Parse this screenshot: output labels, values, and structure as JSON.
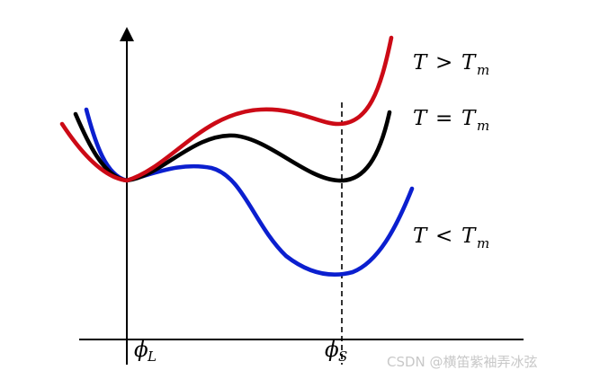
{
  "labels": {
    "T_greater": {
      "var": "T",
      "op": ">",
      "rhs": "T",
      "sub": "m"
    },
    "T_equal": {
      "var": "T",
      "op": "=",
      "rhs": "T",
      "sub": "m"
    },
    "T_less": {
      "var": "T",
      "op": "<",
      "rhs": "T",
      "sub": "m"
    },
    "phi_L": {
      "sym": "ϕ",
      "sub": "L"
    },
    "phi_S": {
      "sym": "ϕ",
      "sub": "S"
    }
  },
  "colors": {
    "T_greater": "#cc0a16",
    "T_equal": "#000000",
    "T_less": "#0b1fcf",
    "axes": "#000000"
  },
  "watermark": "CSDN @横笛紫袖弄冰弦"
}
